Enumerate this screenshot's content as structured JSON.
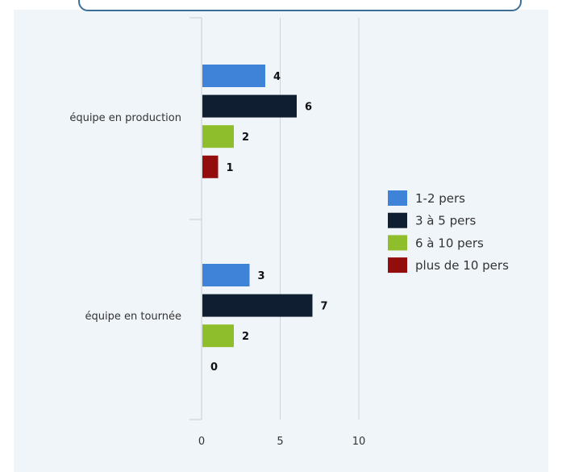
{
  "chart_data": {
    "type": "bar",
    "orientation": "horizontal",
    "categories": [
      "équipe en production",
      "équipe en tournée"
    ],
    "series": [
      {
        "name": "1-2 pers",
        "color": "#3f83d8",
        "values": [
          4,
          3
        ]
      },
      {
        "name": "3 à 5 pers",
        "color": "#0f1e30",
        "values": [
          6,
          7
        ]
      },
      {
        "name": "6 à 10 pers",
        "color": "#8fbe2c",
        "values": [
          2,
          2
        ]
      },
      {
        "name": "plus de 10 pers",
        "color": "#930d0d",
        "values": [
          1,
          0
        ]
      }
    ],
    "xlim": [
      0,
      10
    ],
    "xticks": [
      "0",
      "5",
      "10"
    ],
    "grid": true,
    "legend_position": "right",
    "data_labels": true
  },
  "colors": {
    "grid": "#cfd4d8",
    "axis": "#c8cdd2",
    "label_text": "#333333",
    "tick_text": "#333333"
  }
}
